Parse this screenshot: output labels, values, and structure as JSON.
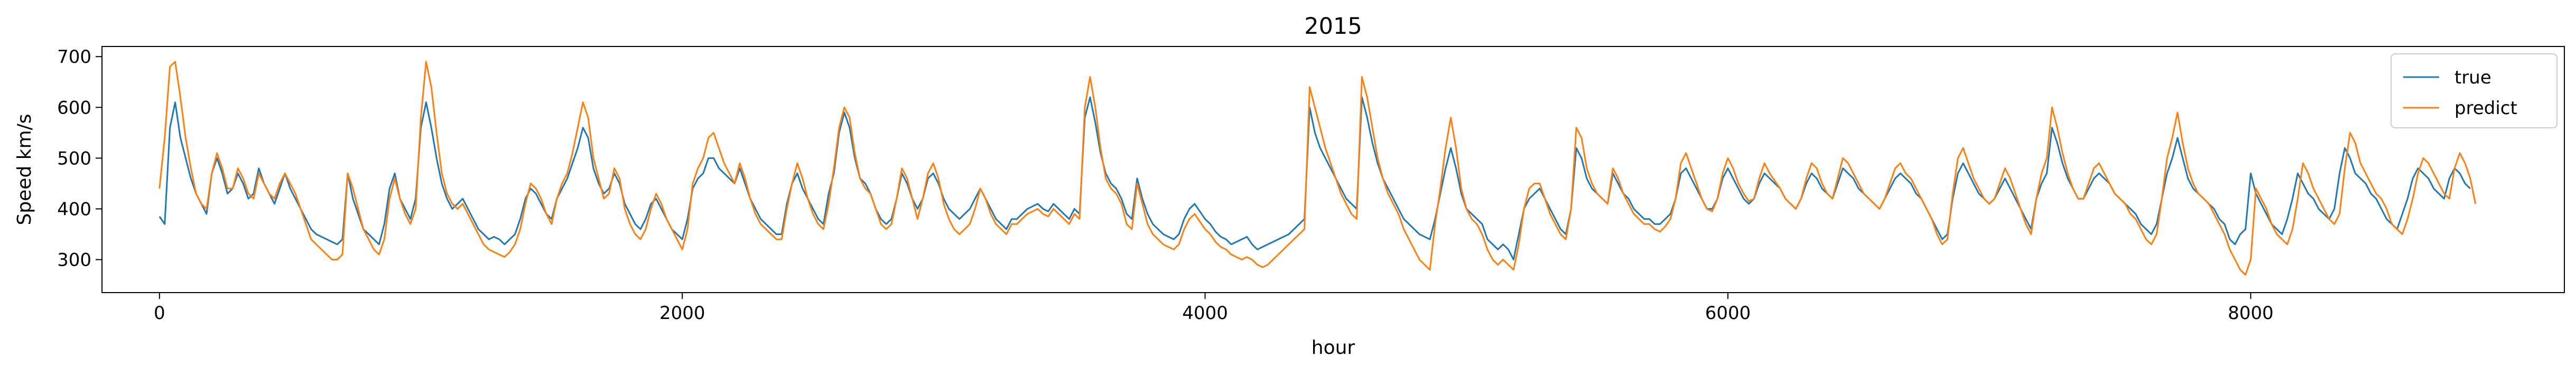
{
  "chart_data": {
    "type": "line",
    "title": "2015",
    "xlabel": "hour",
    "ylabel": "Speed km/s",
    "xlim": [
      -220,
      9200
    ],
    "ylim": [
      235,
      720
    ],
    "xticks": [
      0,
      2000,
      4000,
      6000,
      8000
    ],
    "yticks": [
      300,
      400,
      500,
      600,
      700
    ],
    "grid": false,
    "legend_position": "top-right",
    "x_step": 20,
    "series": [
      {
        "name": "true",
        "color": "#1f77b4",
        "x_start": 0,
        "values": [
          385,
          370,
          560,
          610,
          540,
          500,
          460,
          430,
          410,
          390,
          470,
          500,
          470,
          430,
          440,
          470,
          450,
          420,
          430,
          480,
          450,
          430,
          410,
          440,
          470,
          440,
          420,
          400,
          380,
          360,
          350,
          345,
          340,
          335,
          330,
          340,
          470,
          420,
          390,
          360,
          350,
          340,
          330,
          370,
          440,
          470,
          420,
          400,
          380,
          420,
          560,
          610,
          560,
          500,
          450,
          420,
          400,
          410,
          420,
          400,
          380,
          360,
          350,
          340,
          345,
          340,
          330,
          340,
          350,
          380,
          420,
          440,
          430,
          410,
          390,
          380,
          420,
          440,
          460,
          490,
          520,
          560,
          540,
          480,
          450,
          430,
          440,
          470,
          450,
          410,
          390,
          370,
          360,
          380,
          410,
          420,
          400,
          380,
          360,
          350,
          340,
          380,
          440,
          460,
          470,
          500,
          500,
          480,
          470,
          460,
          450,
          480,
          450,
          420,
          400,
          380,
          370,
          360,
          350,
          350,
          410,
          450,
          470,
          440,
          420,
          400,
          380,
          370,
          430,
          470,
          550,
          590,
          560,
          500,
          460,
          450,
          430,
          400,
          380,
          370,
          380,
          420,
          470,
          450,
          420,
          400,
          420,
          460,
          470,
          450,
          420,
          400,
          390,
          380,
          390,
          400,
          420,
          440,
          420,
          400,
          380,
          370,
          360,
          380,
          380,
          390,
          400,
          405,
          410,
          400,
          395,
          410,
          400,
          390,
          380,
          400,
          390,
          580,
          620,
          570,
          510,
          470,
          450,
          440,
          420,
          390,
          380,
          460,
          420,
          390,
          370,
          360,
          350,
          345,
          340,
          350,
          380,
          400,
          410,
          395,
          380,
          370,
          355,
          345,
          340,
          330,
          335,
          340,
          345,
          330,
          320,
          325,
          330,
          335,
          340,
          345,
          350,
          360,
          370,
          380,
          600,
          550,
          520,
          500,
          480,
          460,
          440,
          420,
          410,
          400,
          620,
          580,
          530,
          490,
          460,
          440,
          420,
          400,
          380,
          370,
          360,
          350,
          345,
          340,
          380,
          430,
          480,
          520,
          480,
          430,
          400,
          390,
          380,
          370,
          340,
          330,
          320,
          330,
          320,
          300,
          350,
          400,
          420,
          430,
          440,
          420,
          400,
          380,
          360,
          350,
          400,
          520,
          500,
          460,
          440,
          430,
          420,
          410,
          470,
          450,
          430,
          420,
          400,
          390,
          380,
          380,
          370,
          370,
          380,
          390,
          420,
          470,
          480,
          460,
          440,
          420,
          400,
          400,
          420,
          460,
          480,
          460,
          440,
          420,
          410,
          420,
          450,
          470,
          460,
          450,
          440,
          420,
          410,
          400,
          420,
          450,
          470,
          460,
          440,
          430,
          420,
          450,
          480,
          470,
          460,
          440,
          430,
          420,
          410,
          400,
          420,
          440,
          460,
          470,
          460,
          450,
          430,
          420,
          400,
          380,
          360,
          340,
          350,
          420,
          470,
          490,
          470,
          450,
          430,
          420,
          410,
          420,
          440,
          460,
          440,
          420,
          400,
          380,
          360,
          420,
          450,
          470,
          560,
          530,
          490,
          460,
          440,
          420,
          420,
          440,
          460,
          470,
          460,
          450,
          430,
          420,
          410,
          400,
          390,
          370,
          360,
          350,
          370,
          420,
          470,
          500,
          540,
          500,
          460,
          440,
          430,
          420,
          410,
          400,
          380,
          370,
          340,
          330,
          350,
          360,
          470,
          430,
          410,
          390,
          370,
          360,
          350,
          380,
          420,
          470,
          450,
          430,
          420,
          400,
          390,
          380,
          400,
          470,
          520,
          500,
          470,
          460,
          450,
          430,
          420,
          400,
          380,
          370,
          360,
          390,
          420,
          460,
          480,
          470,
          460,
          440,
          430,
          420,
          460,
          480,
          470,
          450,
          440
        ]
      },
      {
        "name": "predict",
        "color": "#ff7f0e",
        "x_start": 0,
        "values": [
          440,
          540,
          680,
          690,
          620,
          540,
          480,
          430,
          410,
          400,
          470,
          510,
          480,
          440,
          440,
          480,
          460,
          430,
          420,
          470,
          450,
          430,
          420,
          450,
          470,
          450,
          430,
          400,
          370,
          340,
          330,
          320,
          310,
          300,
          300,
          310,
          470,
          440,
          400,
          360,
          340,
          320,
          310,
          340,
          420,
          460,
          420,
          390,
          370,
          400,
          580,
          690,
          640,
          550,
          470,
          430,
          410,
          400,
          410,
          390,
          370,
          350,
          330,
          320,
          315,
          310,
          305,
          315,
          330,
          360,
          410,
          450,
          440,
          420,
          390,
          370,
          420,
          450,
          470,
          510,
          560,
          610,
          580,
          500,
          460,
          420,
          430,
          480,
          460,
          400,
          370,
          350,
          340,
          360,
          400,
          430,
          410,
          380,
          360,
          340,
          320,
          360,
          450,
          480,
          500,
          540,
          550,
          520,
          490,
          470,
          450,
          490,
          460,
          420,
          390,
          370,
          360,
          350,
          340,
          340,
          400,
          450,
          490,
          460,
          420,
          390,
          370,
          360,
          410,
          480,
          560,
          600,
          580,
          510,
          460,
          440,
          430,
          400,
          370,
          360,
          370,
          420,
          480,
          460,
          420,
          380,
          420,
          470,
          490,
          460,
          410,
          380,
          360,
          350,
          360,
          370,
          400,
          440,
          420,
          390,
          370,
          360,
          350,
          370,
          370,
          380,
          390,
          395,
          400,
          390,
          385,
          400,
          390,
          380,
          370,
          390,
          380,
          600,
          660,
          600,
          520,
          460,
          440,
          430,
          410,
          370,
          360,
          450,
          410,
          370,
          350,
          340,
          330,
          325,
          320,
          330,
          360,
          380,
          390,
          375,
          360,
          350,
          335,
          325,
          320,
          310,
          305,
          300,
          305,
          300,
          290,
          285,
          290,
          300,
          310,
          320,
          330,
          340,
          350,
          360,
          640,
          600,
          560,
          520,
          490,
          460,
          430,
          410,
          390,
          380,
          660,
          620,
          560,
          500,
          460,
          430,
          410,
          390,
          360,
          340,
          320,
          300,
          290,
          280,
          370,
          440,
          520,
          580,
          520,
          440,
          400,
          380,
          370,
          350,
          320,
          300,
          290,
          300,
          290,
          280,
          330,
          400,
          440,
          450,
          450,
          420,
          390,
          370,
          350,
          340,
          400,
          560,
          540,
          480,
          450,
          430,
          420,
          410,
          480,
          460,
          430,
          410,
          390,
          380,
          370,
          370,
          360,
          355,
          365,
          380,
          420,
          490,
          510,
          480,
          450,
          420,
          400,
          395,
          420,
          470,
          500,
          480,
          450,
          430,
          415,
          420,
          460,
          490,
          470,
          455,
          440,
          420,
          410,
          400,
          420,
          460,
          490,
          480,
          450,
          430,
          420,
          460,
          500,
          490,
          470,
          450,
          430,
          420,
          410,
          400,
          420,
          450,
          480,
          490,
          470,
          460,
          440,
          420,
          400,
          380,
          350,
          330,
          340,
          430,
          500,
          520,
          490,
          460,
          440,
          420,
          410,
          420,
          450,
          480,
          460,
          430,
          400,
          370,
          350,
          420,
          470,
          500,
          600,
          560,
          510,
          470,
          440,
          420,
          420,
          450,
          480,
          490,
          470,
          450,
          430,
          420,
          410,
          390,
          380,
          360,
          340,
          330,
          350,
          420,
          500,
          540,
          590,
          530,
          480,
          450,
          430,
          420,
          410,
          390,
          370,
          350,
          320,
          300,
          280,
          270,
          300,
          440,
          420,
          400,
          370,
          350,
          340,
          330,
          360,
          420,
          490,
          470,
          440,
          420,
          400,
          380,
          370,
          390,
          480,
          550,
          530,
          490,
          470,
          450,
          430,
          420,
          400,
          370,
          360,
          350,
          380,
          420,
          470,
          500,
          490,
          470,
          450,
          430,
          420,
          480,
          510,
          490,
          460,
          410
        ]
      }
    ]
  }
}
